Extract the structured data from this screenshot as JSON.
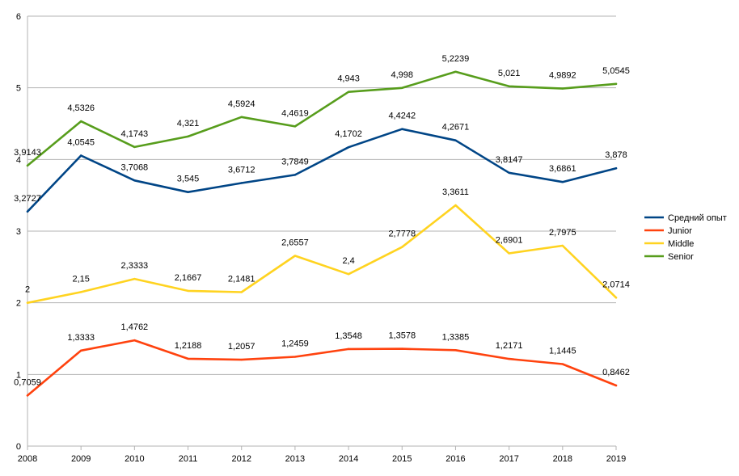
{
  "chart_data": {
    "type": "line",
    "title": "",
    "xlabel": "",
    "ylabel": "",
    "x": [
      "2008",
      "2009",
      "2010",
      "2011",
      "2012",
      "2013",
      "2014",
      "2015",
      "2016",
      "2017",
      "2018",
      "2019"
    ],
    "ylim": [
      0,
      6
    ],
    "yticks": [
      "0",
      "1",
      "2",
      "3",
      "4",
      "5",
      "6"
    ],
    "grid": true,
    "legend_position": "right",
    "series": [
      {
        "name": "Средний опыт",
        "color": "#004586",
        "values": [
          3.2727,
          4.0545,
          3.7068,
          3.545,
          3.6712,
          3.7849,
          4.1702,
          4.4242,
          4.2671,
          3.8147,
          3.6861,
          3.878
        ],
        "labels": [
          "3,2727",
          "4,0545",
          "3,7068",
          "3,545",
          "3,6712",
          "3,7849",
          "4,1702",
          "4,4242",
          "4,2671",
          "3,8147",
          "3,6861",
          "3,878"
        ]
      },
      {
        "name": "Junior",
        "color": "#ff420e",
        "values": [
          0.7059,
          1.3333,
          1.4762,
          1.2188,
          1.2057,
          1.2459,
          1.3548,
          1.3578,
          1.3385,
          1.2171,
          1.1445,
          0.8462
        ],
        "labels": [
          "0,7059",
          "1,3333",
          "1,4762",
          "1,2188",
          "1,2057",
          "1,2459",
          "1,3548",
          "1,3578",
          "1,3385",
          "1,2171",
          "1,1445",
          "0,8462"
        ]
      },
      {
        "name": "Middle",
        "color": "#ffd320",
        "values": [
          2,
          2.15,
          2.3333,
          2.1667,
          2.1481,
          2.6557,
          2.4,
          2.7778,
          3.3611,
          2.6901,
          2.7975,
          2.0714
        ],
        "labels": [
          "2",
          "2,15",
          "2,3333",
          "2,1667",
          "2,1481",
          "2,6557",
          "2,4",
          "2,7778",
          "3,3611",
          "2,6901",
          "2,7975",
          "2,0714"
        ]
      },
      {
        "name": "Senior",
        "color": "#579d1c",
        "values": [
          3.9143,
          4.5326,
          4.1743,
          4.321,
          4.5924,
          4.4619,
          4.943,
          4.998,
          5.2239,
          5.021,
          4.9892,
          5.0545
        ],
        "labels": [
          "3,9143",
          "4,5326",
          "4,1743",
          "4,321",
          "4,5924",
          "4,4619",
          "4,943",
          "4,998",
          "5,2239",
          "5,021",
          "4,9892",
          "5,0545"
        ]
      }
    ]
  }
}
